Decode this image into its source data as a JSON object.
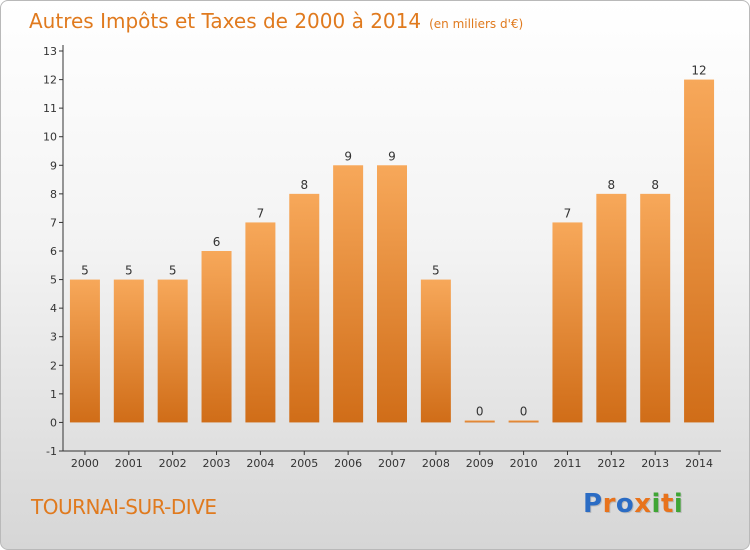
{
  "chart_data": {
    "type": "bar",
    "title": "Autres Impôts et Taxes de 2000 à 2014",
    "subtitle": "(en milliers d'€)",
    "categories": [
      "2000",
      "2001",
      "2002",
      "2003",
      "2004",
      "2005",
      "2006",
      "2007",
      "2008",
      "2009",
      "2010",
      "2011",
      "2012",
      "2013",
      "2014"
    ],
    "values": [
      5,
      5,
      5,
      6,
      7,
      8,
      9,
      9,
      5,
      0,
      0,
      7,
      8,
      8,
      12
    ],
    "data_labels": [
      "5",
      "5",
      "5",
      "6",
      "7",
      "8",
      "9",
      "9",
      "5",
      "0",
      "0",
      "7",
      "8",
      "8",
      "12"
    ],
    "y_ticks": [
      -1,
      0,
      1,
      2,
      3,
      4,
      5,
      6,
      7,
      8,
      9,
      10,
      11,
      12,
      13
    ],
    "ylim": [
      -1,
      13
    ],
    "grid": false,
    "bar_color": "#f0923a",
    "bar_color_light": "#f7a85a",
    "bar_color_dark": "#d06d18"
  },
  "footer": {
    "commune": "TOURNAI-SUR-DIVE",
    "logo_letters": [
      {
        "ch": "P",
        "color": "#2b6cc4"
      },
      {
        "ch": "r",
        "color": "#e8731c"
      },
      {
        "ch": "o",
        "color": "#2b6cc4"
      },
      {
        "ch": "x",
        "color": "#e8731c"
      },
      {
        "ch": "i",
        "color": "#3fa535"
      },
      {
        "ch": "t",
        "color": "#e8731c"
      },
      {
        "ch": "i",
        "color": "#3fa535"
      }
    ]
  },
  "colors": {
    "accent": "#e07a1e",
    "axis": "#333333",
    "text": "#333333"
  }
}
